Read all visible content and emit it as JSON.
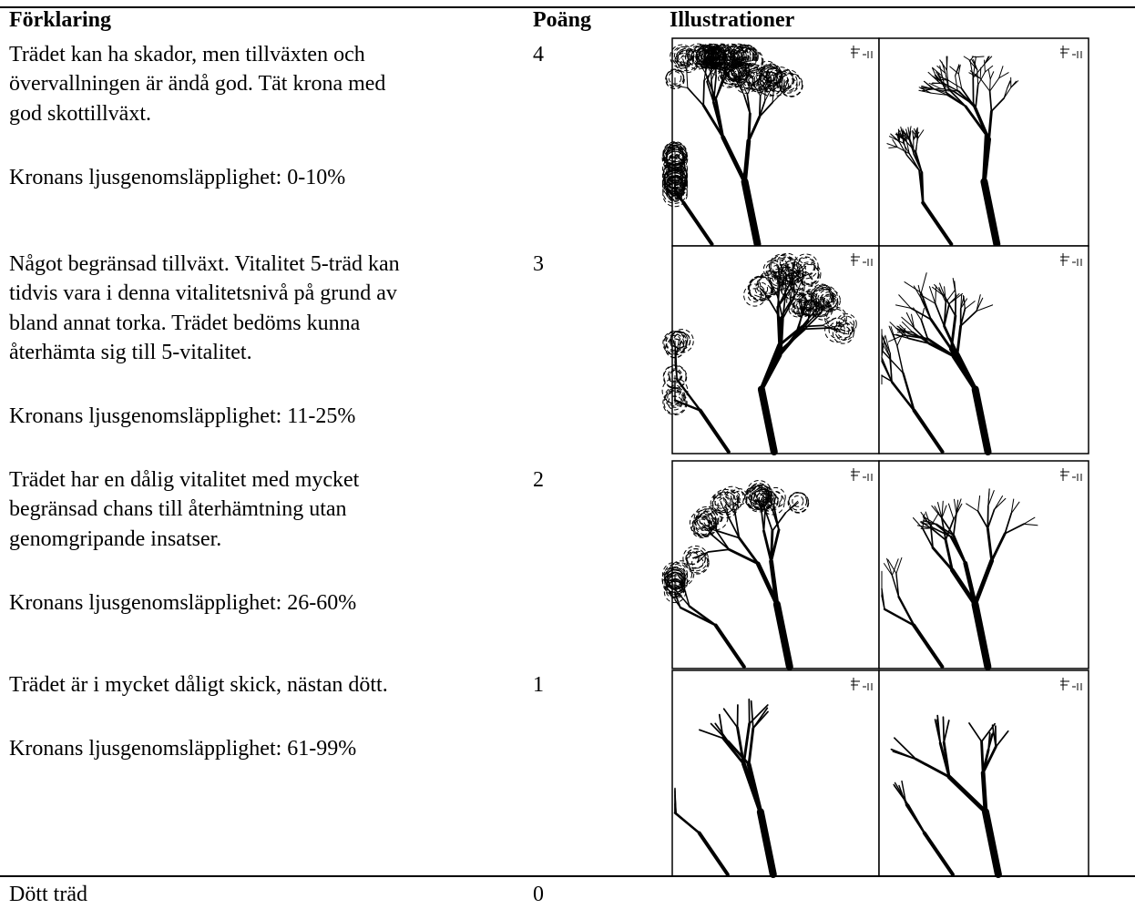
{
  "header": {
    "explanation": "Förklaring",
    "score": "Poäng",
    "illustrations": "Illustrationer"
  },
  "rows": [
    {
      "description": [
        "Trädet kan ha skador, men tillväxten och",
        "övervallningen är ändå god. Tät krona med",
        "god skottillväxt."
      ],
      "light": "Kronans ljusgenomsläpplighet: 0-10%",
      "score": 4
    },
    {
      "description": [
        "Något begränsad tillväxt. Vitalitet 5-träd kan",
        "tidvis vara i denna vitalitetsnivå på grund av",
        "bland annat torka. Trädet bedöms kunna",
        "återhämta sig till 5-vitalitet."
      ],
      "light": "Kronans ljusgenomsläpplighet: 11-25%",
      "score": 3
    },
    {
      "description": [
        "Trädet har en dålig vitalitet med mycket",
        "begränsad chans till återhämtning utan",
        "genomgripande insatser."
      ],
      "light": "Kronans ljusgenomsläpplighet: 26-60%",
      "score": 2
    },
    {
      "description": [
        "Trädet är i mycket dåligt skick, nästan dött."
      ],
      "light": "Kronans ljusgenomsläpplighet: 61-99%",
      "score": 1
    }
  ],
  "dead": {
    "description": "Dött träd",
    "score": 0
  }
}
